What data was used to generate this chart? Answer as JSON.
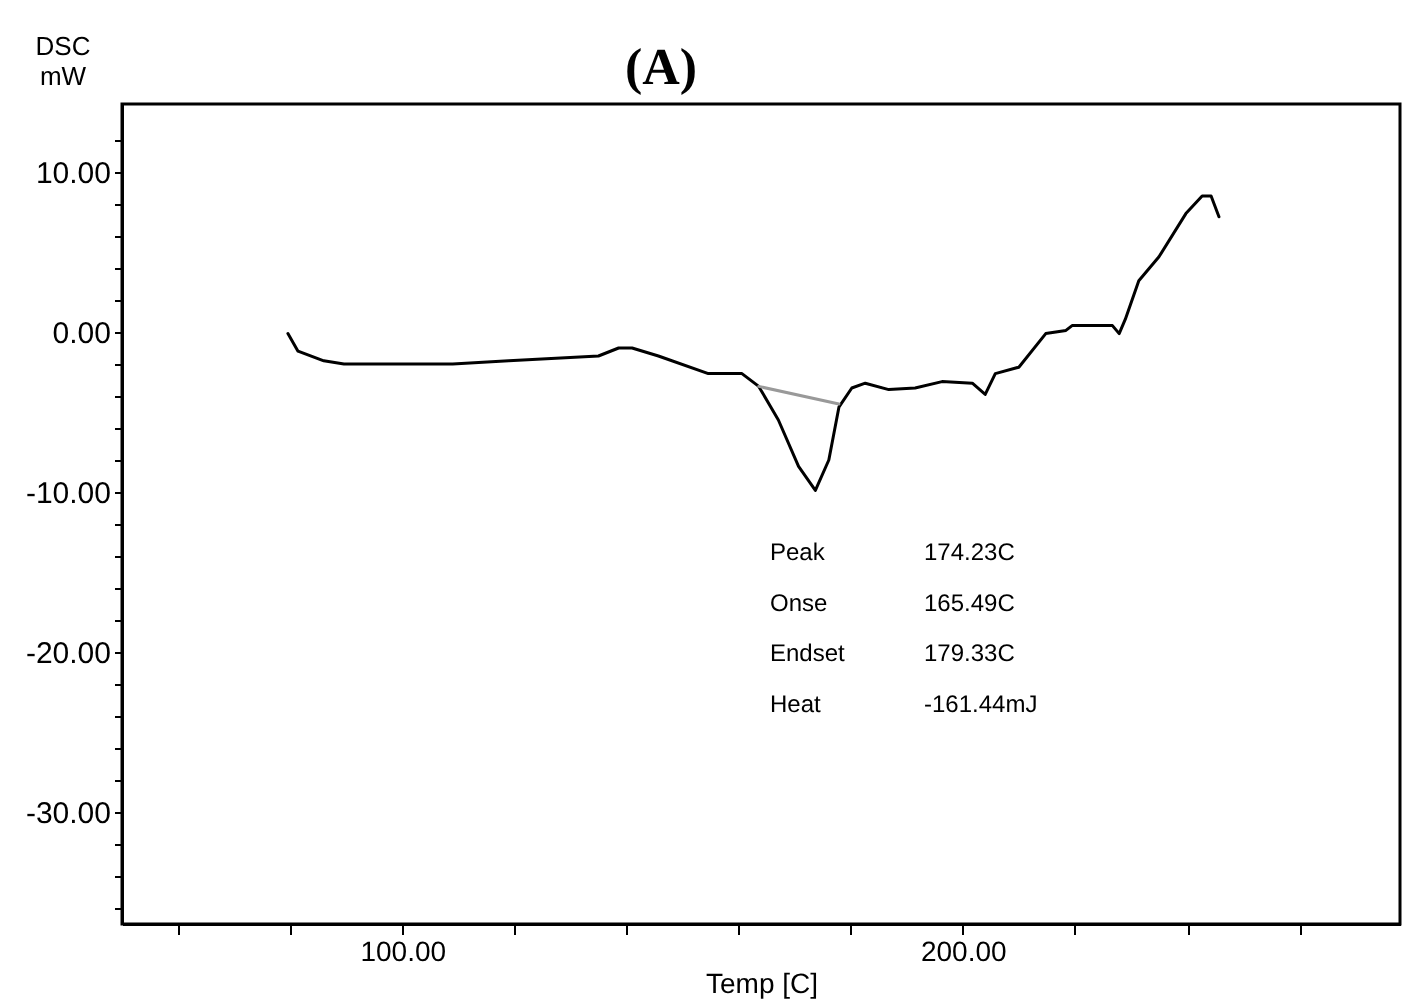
{
  "chart_data": {
    "type": "line",
    "title": "(A)",
    "xlabel": "Temp  [C]",
    "ylabel": "DSC\nmW",
    "xlim": [
      50,
      278
    ],
    "ylim": [
      -37,
      14.25
    ],
    "xticks": [
      {
        "value": 60,
        "label": null
      },
      {
        "value": 80,
        "label": null
      },
      {
        "value": 100,
        "label": "100.00"
      },
      {
        "value": 120,
        "label": null
      },
      {
        "value": 140,
        "label": null
      },
      {
        "value": 160,
        "label": null
      },
      {
        "value": 180,
        "label": null
      },
      {
        "value": 200,
        "label": "200.00"
      },
      {
        "value": 220,
        "label": null
      },
      {
        "value": 240,
        "label": null
      },
      {
        "value": 260,
        "label": null
      }
    ],
    "yticks": [
      {
        "value": 12,
        "label": null
      },
      {
        "value": 10,
        "label": "10.00"
      },
      {
        "value": 8,
        "label": null
      },
      {
        "value": 6,
        "label": null
      },
      {
        "value": 4,
        "label": null
      },
      {
        "value": 2,
        "label": null
      },
      {
        "value": 0,
        "label": "0.00"
      },
      {
        "value": -2,
        "label": null
      },
      {
        "value": -4,
        "label": null
      },
      {
        "value": -6,
        "label": null
      },
      {
        "value": -8,
        "label": null
      },
      {
        "value": -10,
        "label": "-10.00"
      },
      {
        "value": -12,
        "label": null
      },
      {
        "value": -14,
        "label": null
      },
      {
        "value": -16,
        "label": null
      },
      {
        "value": -18,
        "label": null
      },
      {
        "value": -20,
        "label": "-20.00"
      },
      {
        "value": -22,
        "label": null
      },
      {
        "value": -24,
        "label": null
      },
      {
        "value": -26,
        "label": null
      },
      {
        "value": -28,
        "label": null
      },
      {
        "value": -30,
        "label": "-30.00"
      },
      {
        "value": -32,
        "label": null
      },
      {
        "value": -34,
        "label": null
      },
      {
        "value": -36,
        "label": null
      }
    ],
    "grid": false,
    "marker": "none",
    "line_style": "solid",
    "series": [
      {
        "color": "#000000",
        "x": [
          79.6,
          81.4,
          86,
          89.6,
          109,
          119,
          135,
          138.6,
          141,
          145.7,
          154.6,
          160.6,
          163.6,
          167.1,
          170.7,
          173.7,
          176.1,
          177.9,
          180.2,
          182.6,
          186.8,
          191.5,
          196.3,
          201.7,
          204,
          205.8,
          210,
          214.8,
          218.4,
          219.5,
          226.7,
          227.9,
          229,
          231.4,
          235,
          239.8,
          242.7,
          244.3,
          245.7
        ],
        "values": [
          -0.1,
          -1.2,
          -1.8,
          -2,
          -2,
          -1.8,
          -1.5,
          -1,
          -1,
          -1.5,
          -2.6,
          -2.6,
          -3.4,
          -5.5,
          -8.4,
          -9.9,
          -8,
          -4.7,
          -3.5,
          -3.2,
          -3.6,
          -3.5,
          -3.1,
          -3.2,
          -3.9,
          -2.6,
          -2.2,
          -0.1,
          0.1,
          0.4,
          0.4,
          -0.1,
          0.8,
          3.2,
          4.7,
          7.4,
          8.5,
          8.5,
          7.2
        ]
      },
      {
        "type": "line",
        "color": "#999999",
        "x": [
          163.6,
          177.9
        ],
        "values": [
          -3.4,
          -4.5
        ]
      }
    ],
    "annotations": [
      "Peak",
      "174.23C",
      "Onse",
      "165.49C",
      "Endset",
      "179.33C",
      "Heat",
      "-161.44mJ"
    ]
  }
}
